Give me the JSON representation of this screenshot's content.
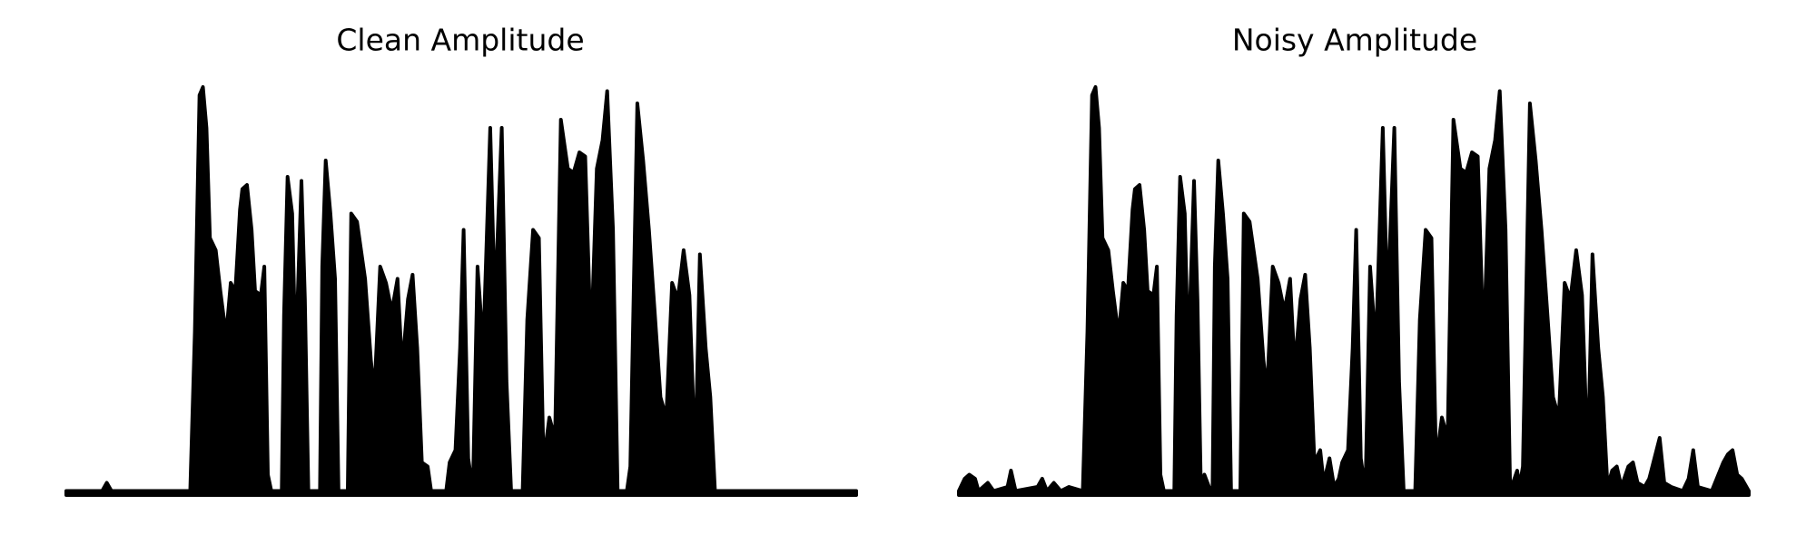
{
  "chart_data": [
    {
      "type": "area",
      "title": "Clean Amplitude",
      "color": "#000000",
      "xlim": [
        0,
        682
      ],
      "ylim": [
        0,
        1
      ],
      "x": [
        0,
        31,
        35,
        39,
        107,
        111,
        115,
        118,
        121,
        124,
        129,
        133,
        138,
        142,
        146,
        150,
        152,
        156,
        160,
        163,
        168,
        171,
        174,
        177,
        186,
        188,
        191,
        195,
        198,
        203,
        206,
        209,
        219,
        221,
        224,
        228,
        232,
        235,
        243,
        246,
        251,
        258,
        263,
        266,
        271,
        276,
        281,
        286,
        290,
        295,
        299,
        303,
        307,
        312,
        315,
        328,
        331,
        336,
        340,
        343,
        347,
        351,
        355,
        360,
        366,
        370,
        376,
        380,
        384,
        394,
        398,
        403,
        408,
        412,
        417,
        422,
        427,
        433,
        438,
        443,
        448,
        453,
        458,
        463,
        467,
        472,
        476,
        484,
        487,
        493,
        498,
        503,
        508,
        513,
        518,
        523,
        528,
        533,
        538,
        543,
        547,
        552,
        556,
        560,
        682
      ],
      "values": [
        0.01,
        0.01,
        0.03,
        0.01,
        0.01,
        0.4,
        0.98,
        1.0,
        0.9,
        0.63,
        0.6,
        0.5,
        0.39,
        0.52,
        0.5,
        0.7,
        0.75,
        0.76,
        0.65,
        0.5,
        0.49,
        0.56,
        0.05,
        0.01,
        0.01,
        0.44,
        0.78,
        0.69,
        0.33,
        0.77,
        0.48,
        0.01,
        0.01,
        0.56,
        0.82,
        0.69,
        0.53,
        0.01,
        0.01,
        0.69,
        0.67,
        0.53,
        0.33,
        0.25,
        0.56,
        0.52,
        0.45,
        0.53,
        0.31,
        0.48,
        0.54,
        0.36,
        0.08,
        0.07,
        0.01,
        0.01,
        0.08,
        0.11,
        0.36,
        0.65,
        0.09,
        0.01,
        0.56,
        0.36,
        0.9,
        0.46,
        0.9,
        0.28,
        0.01,
        0.01,
        0.43,
        0.65,
        0.63,
        0.08,
        0.19,
        0.14,
        0.92,
        0.8,
        0.79,
        0.84,
        0.83,
        0.36,
        0.8,
        0.87,
        0.99,
        0.65,
        0.01,
        0.01,
        0.07,
        0.96,
        0.82,
        0.65,
        0.45,
        0.24,
        0.19,
        0.52,
        0.48,
        0.6,
        0.49,
        0.08,
        0.59,
        0.36,
        0.24,
        0.01,
        0.01
      ]
    },
    {
      "type": "area",
      "title": "Noisy Amplitude",
      "color": "#000000",
      "xlim": [
        0,
        682
      ],
      "ylim": [
        0,
        1
      ],
      "x": [
        0,
        5,
        9,
        14,
        17,
        25,
        30,
        42,
        45,
        49,
        68,
        72,
        76,
        82,
        88,
        95,
        107,
        111,
        115,
        118,
        121,
        124,
        129,
        133,
        138,
        142,
        146,
        150,
        152,
        156,
        160,
        163,
        168,
        171,
        174,
        177,
        186,
        188,
        191,
        195,
        198,
        203,
        206,
        209,
        212,
        216,
        219,
        221,
        224,
        228,
        232,
        235,
        243,
        246,
        251,
        258,
        263,
        266,
        271,
        276,
        281,
        286,
        290,
        295,
        299,
        303,
        307,
        312,
        315,
        320,
        324,
        328,
        331,
        336,
        340,
        343,
        347,
        351,
        355,
        360,
        366,
        370,
        376,
        380,
        384,
        394,
        398,
        403,
        408,
        412,
        417,
        422,
        427,
        433,
        438,
        443,
        448,
        453,
        458,
        463,
        467,
        472,
        476,
        482,
        484,
        487,
        493,
        498,
        503,
        508,
        513,
        518,
        523,
        528,
        533,
        538,
        543,
        547,
        552,
        556,
        560,
        564,
        568,
        572,
        578,
        582,
        586,
        592,
        596,
        605,
        609,
        615,
        625,
        630,
        634,
        638,
        650,
        660,
        664,
        668,
        672,
        676,
        682
      ],
      "values": [
        0.01,
        0.04,
        0.05,
        0.04,
        0.01,
        0.03,
        0.01,
        0.02,
        0.06,
        0.01,
        0.02,
        0.04,
        0.01,
        0.03,
        0.01,
        0.02,
        0.01,
        0.4,
        0.98,
        1.0,
        0.9,
        0.63,
        0.6,
        0.5,
        0.39,
        0.52,
        0.5,
        0.7,
        0.75,
        0.76,
        0.65,
        0.5,
        0.49,
        0.56,
        0.05,
        0.01,
        0.01,
        0.44,
        0.78,
        0.69,
        0.33,
        0.77,
        0.48,
        0.01,
        0.05,
        0.02,
        0.01,
        0.56,
        0.82,
        0.69,
        0.53,
        0.01,
        0.01,
        0.69,
        0.67,
        0.53,
        0.33,
        0.25,
        0.56,
        0.52,
        0.45,
        0.53,
        0.31,
        0.48,
        0.54,
        0.36,
        0.08,
        0.11,
        0.03,
        0.09,
        0.02,
        0.04,
        0.08,
        0.11,
        0.36,
        0.65,
        0.09,
        0.01,
        0.56,
        0.36,
        0.9,
        0.46,
        0.9,
        0.28,
        0.01,
        0.01,
        0.43,
        0.65,
        0.63,
        0.08,
        0.19,
        0.14,
        0.92,
        0.8,
        0.79,
        0.84,
        0.83,
        0.36,
        0.8,
        0.87,
        0.99,
        0.65,
        0.01,
        0.06,
        0.02,
        0.07,
        0.96,
        0.82,
        0.65,
        0.45,
        0.24,
        0.19,
        0.52,
        0.48,
        0.6,
        0.49,
        0.08,
        0.59,
        0.36,
        0.24,
        0.02,
        0.06,
        0.07,
        0.02,
        0.07,
        0.08,
        0.03,
        0.02,
        0.04,
        0.14,
        0.03,
        0.02,
        0.01,
        0.04,
        0.11,
        0.02,
        0.01,
        0.08,
        0.1,
        0.11,
        0.05,
        0.04,
        0.01
      ]
    }
  ]
}
